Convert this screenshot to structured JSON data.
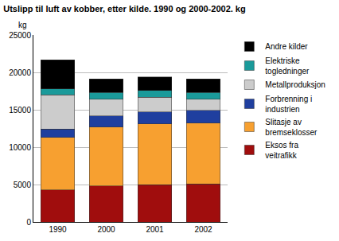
{
  "chart_data": {
    "type": "bar",
    "stacked": true,
    "title": "Utslipp til luft av kobber, etter kilde. 1990 og 2000-2002. kg",
    "y_label": "kg",
    "categories": [
      "1990",
      "2000",
      "2001",
      "2002"
    ],
    "series": [
      {
        "name": "Eksos fra veitrafikk",
        "color": "#a00d0d",
        "values": [
          4300,
          4800,
          5000,
          5100
        ]
      },
      {
        "name": "Slitasje av bremseklosser",
        "color": "#f7a030",
        "values": [
          7000,
          7900,
          8100,
          8100
        ]
      },
      {
        "name": "Forbrenning i industrien",
        "color": "#1f3f9f",
        "values": [
          1100,
          1500,
          1600,
          1700
        ]
      },
      {
        "name": "Metallproduksjon",
        "color": "#cccccc",
        "values": [
          4600,
          2200,
          2000,
          1500
        ]
      },
      {
        "name": "Elektriske togledninger",
        "color": "#1a9a9a",
        "values": [
          800,
          900,
          900,
          900
        ]
      },
      {
        "name": "Andre kilder",
        "color": "#000000",
        "values": [
          3900,
          1800,
          1800,
          1800
        ]
      }
    ],
    "ylim": [
      0,
      25000
    ],
    "yticks": [
      0,
      5000,
      10000,
      15000,
      20000,
      25000
    ],
    "grid": true,
    "legend": "right"
  }
}
